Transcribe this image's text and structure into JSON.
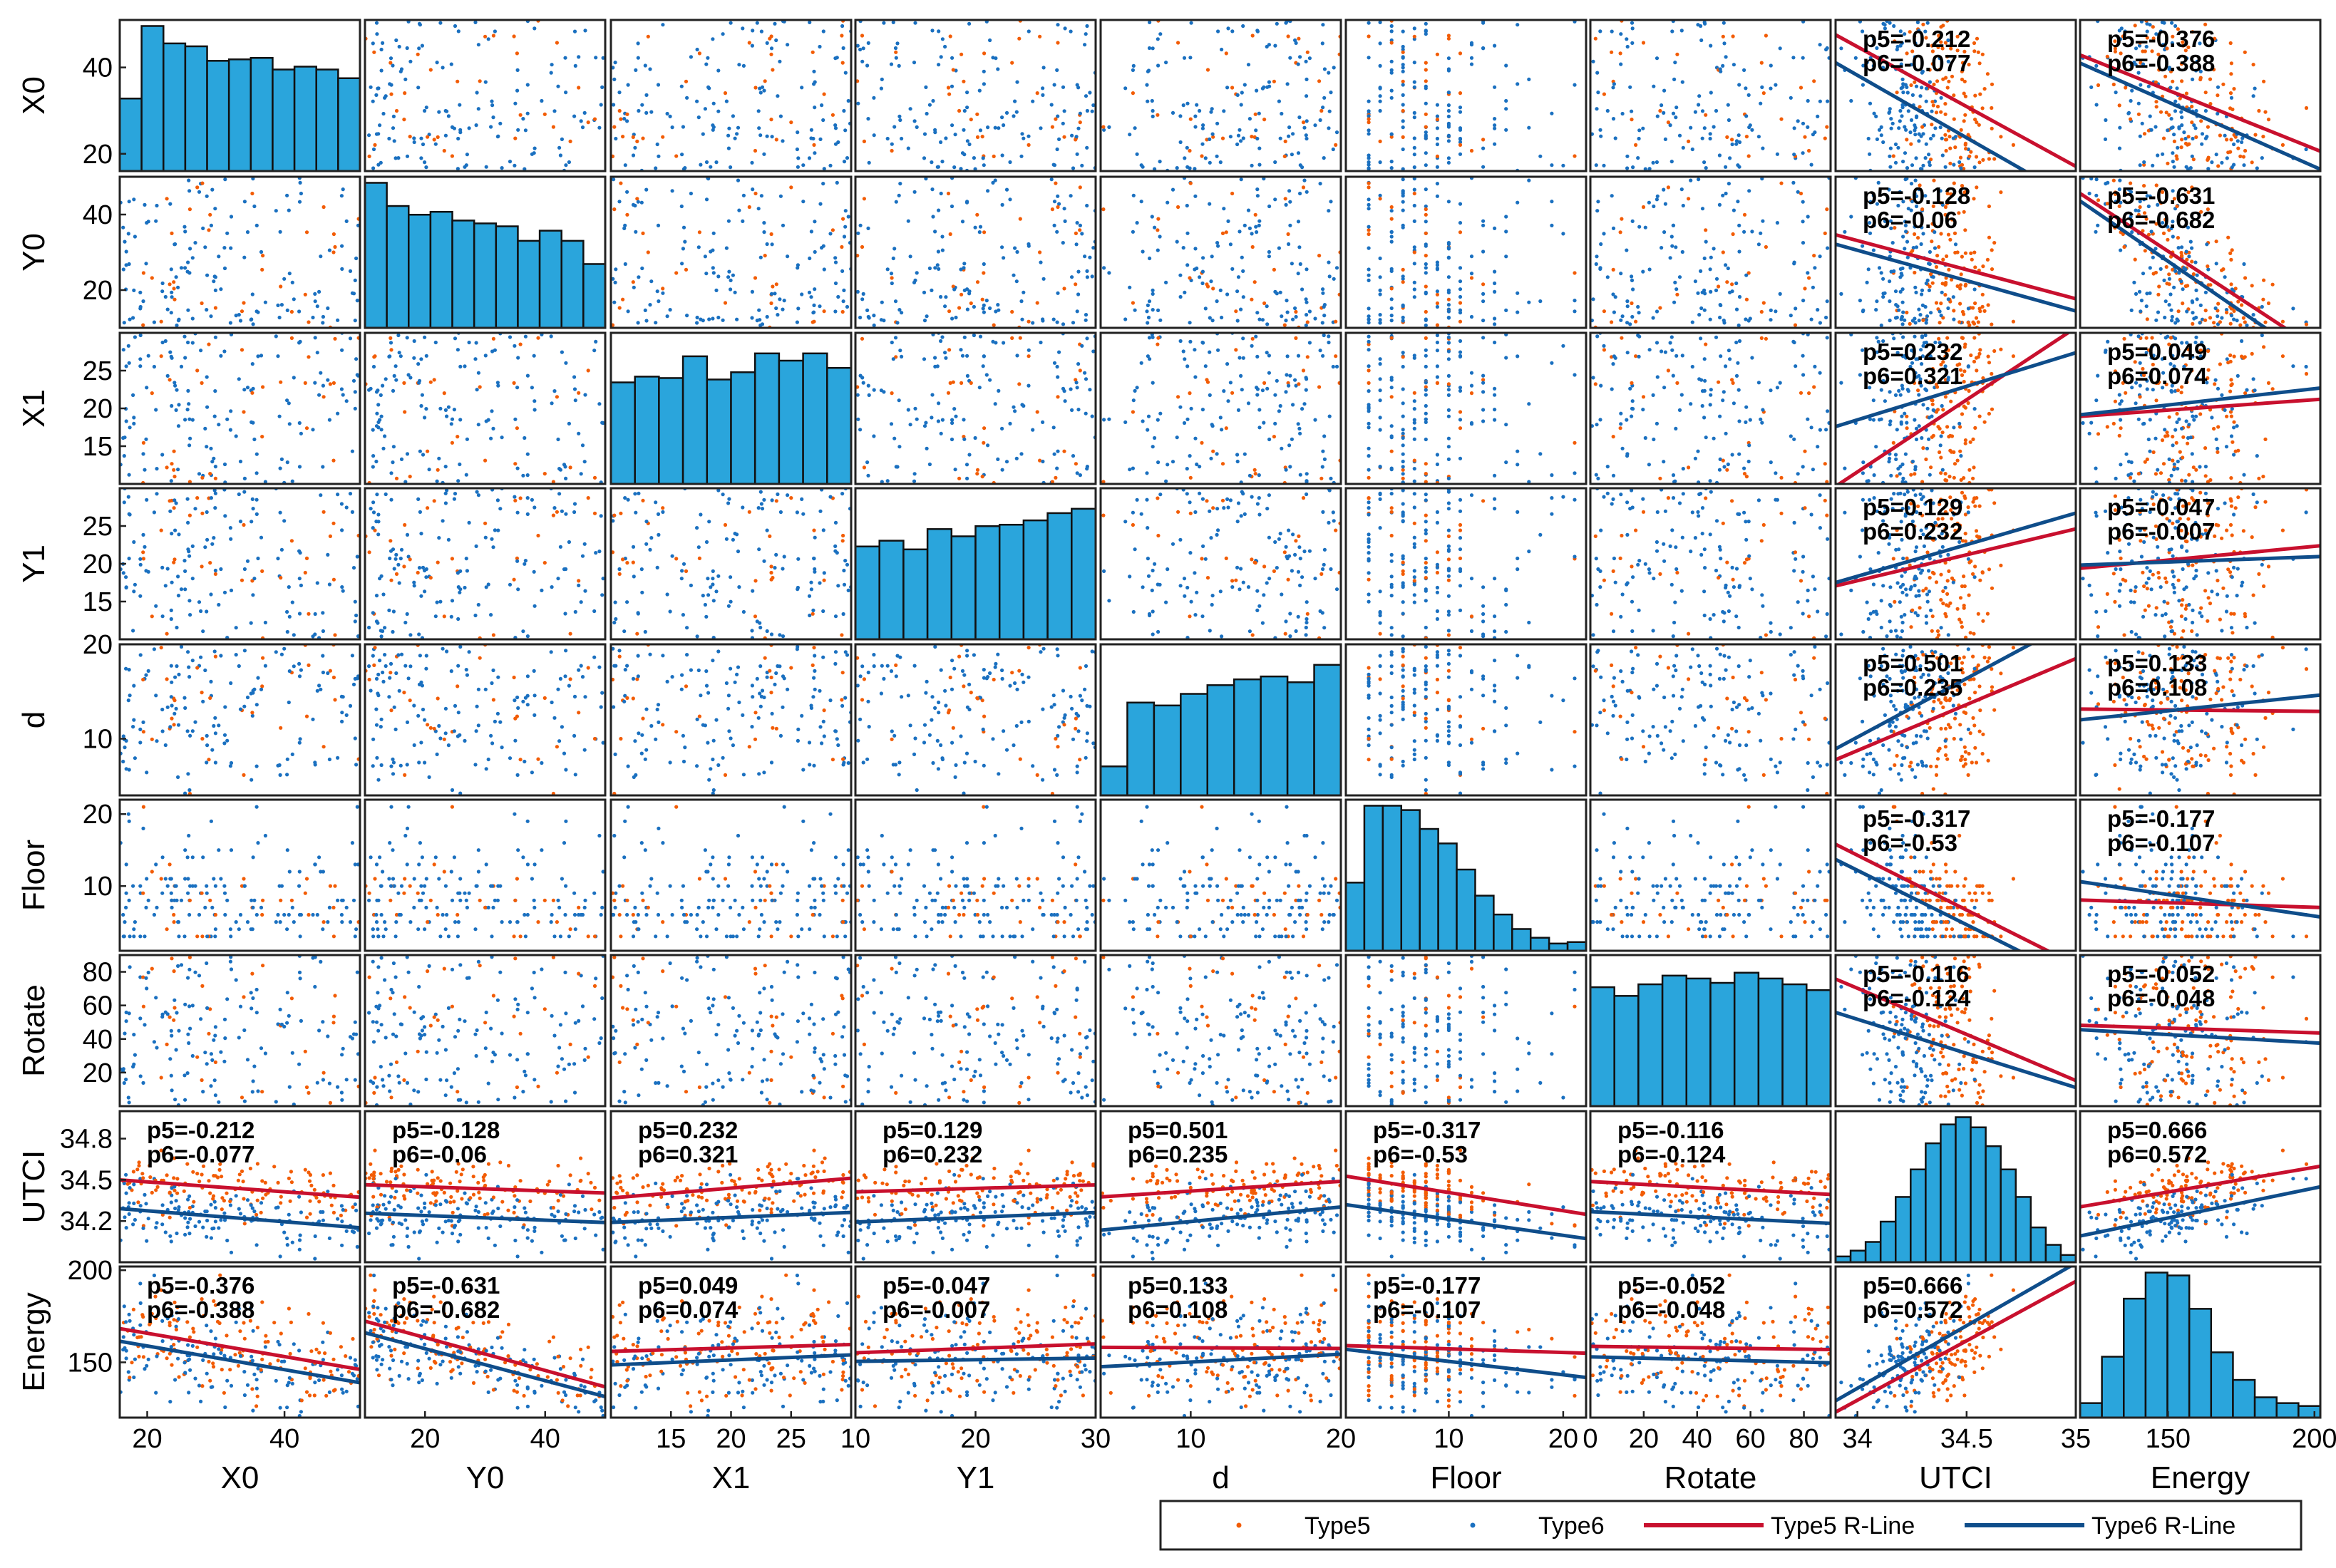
{
  "chart_data": {
    "type": "scatter",
    "title": "",
    "variables": [
      "X0",
      "Y0",
      "X1",
      "Y1",
      "d",
      "Floor",
      "Rotate",
      "UTCI",
      "Energy"
    ],
    "axis_ranges": {
      "X0": [
        16,
        51
      ],
      "Y0": [
        10,
        50
      ],
      "X1": [
        10,
        30
      ],
      "Y1": [
        10,
        30
      ],
      "d": [
        4,
        20
      ],
      "Floor": [
        1,
        22
      ],
      "Rotate": [
        0,
        90
      ],
      "UTCI": [
        33.9,
        35.0
      ],
      "Energy": [
        120,
        202
      ]
    },
    "x_ticks": {
      "X0": [
        "20",
        "40"
      ],
      "Y0": [
        "20",
        "40"
      ],
      "X1": [
        "15",
        "20",
        "25"
      ],
      "Y1": [
        "10",
        "20",
        "30"
      ],
      "d": [
        "10",
        "20"
      ],
      "Floor": [
        "10",
        "20"
      ],
      "Rotate": [
        "0",
        "20",
        "40",
        "60",
        "80"
      ],
      "UTCI": [
        "34",
        "34.5",
        "35"
      ],
      "Energy": [
        "150",
        "200"
      ]
    },
    "x_tick_values": {
      "X0": [
        20,
        40
      ],
      "Y0": [
        20,
        40
      ],
      "X1": [
        15,
        20,
        25
      ],
      "Y1": [
        10,
        20,
        30
      ],
      "d": [
        10,
        20
      ],
      "Floor": [
        10,
        20
      ],
      "Rotate": [
        0,
        20,
        40,
        60,
        80
      ],
      "UTCI": [
        34,
        34.5,
        35
      ],
      "Energy": [
        150,
        200
      ]
    },
    "y_ticks": {
      "X0": [
        "20",
        "40"
      ],
      "Y0": [
        "20",
        "40"
      ],
      "X1": [
        "15",
        "20",
        "25"
      ],
      "Y1": [
        "15",
        "20",
        "25"
      ],
      "d": [
        "10",
        "20"
      ],
      "Floor": [
        "10",
        "20"
      ],
      "Rotate": [
        "20",
        "40",
        "60",
        "80"
      ],
      "UTCI": [
        "34.2",
        "34.5",
        "34.8"
      ],
      "Energy": [
        "150",
        "200"
      ]
    },
    "y_tick_values": {
      "X0": [
        20,
        40
      ],
      "Y0": [
        20,
        40
      ],
      "X1": [
        15,
        20,
        25
      ],
      "Y1": [
        15,
        20,
        25
      ],
      "d": [
        10,
        20
      ],
      "Floor": [
        10,
        20
      ],
      "Rotate": [
        20,
        40,
        60,
        80
      ],
      "UTCI": [
        34.2,
        34.5,
        34.8
      ],
      "Energy": [
        150,
        200
      ]
    },
    "histograms": {
      "X0": [
        0.5,
        1.0,
        0.88,
        0.86,
        0.76,
        0.77,
        0.78,
        0.7,
        0.72,
        0.7,
        0.64
      ],
      "Y0": [
        1.0,
        0.84,
        0.78,
        0.8,
        0.74,
        0.72,
        0.7,
        0.6,
        0.67,
        0.6,
        0.44
      ],
      "X1": [
        0.7,
        0.74,
        0.73,
        0.88,
        0.72,
        0.77,
        0.9,
        0.85,
        0.9,
        0.8
      ],
      "Y1": [
        0.64,
        0.68,
        0.62,
        0.76,
        0.71,
        0.78,
        0.79,
        0.82,
        0.87,
        0.9
      ],
      "d": [
        0.2,
        0.64,
        0.62,
        0.7,
        0.76,
        0.8,
        0.82,
        0.78,
        0.9
      ],
      "Floor": [
        0.47,
        1.0,
        1.0,
        0.97,
        0.84,
        0.74,
        0.56,
        0.38,
        0.25,
        0.15,
        0.09,
        0.05,
        0.06
      ],
      "Rotate": [
        0.82,
        0.76,
        0.84,
        0.9,
        0.88,
        0.85,
        0.92,
        0.88,
        0.84,
        0.8
      ],
      "UTCI": [
        0.04,
        0.08,
        0.14,
        0.28,
        0.45,
        0.64,
        0.82,
        0.95,
        1.0,
        0.93,
        0.8,
        0.64,
        0.45,
        0.24,
        0.12,
        0.05
      ],
      "Energy": [
        0.1,
        0.42,
        0.82,
        1.0,
        0.98,
        0.75,
        0.45,
        0.26,
        0.14,
        0.1,
        0.08
      ]
    },
    "correlations": {
      "X0": {
        "UTCI": {
          "p5": "-0.212",
          "p6": "-0.077"
        },
        "Energy": {
          "p5": "-0.376",
          "p6": "-0.388"
        }
      },
      "Y0": {
        "UTCI": {
          "p5": "-0.128",
          "p6": "-0.06"
        },
        "Energy": {
          "p5": "-0.631",
          "p6": "-0.682"
        }
      },
      "X1": {
        "UTCI": {
          "p5": "0.232",
          "p6": "0.321"
        },
        "Energy": {
          "p5": "0.049",
          "p6": "0.074"
        }
      },
      "Y1": {
        "UTCI": {
          "p5": "0.129",
          "p6": "0.232"
        },
        "Energy": {
          "p5": "-0.047",
          "p6": "-0.007"
        }
      },
      "d": {
        "UTCI": {
          "p5": "0.501",
          "p6": "0.235"
        },
        "Energy": {
          "p5": "0.133",
          "p6": "0.108"
        }
      },
      "Floor": {
        "UTCI": {
          "p5": "-0.317",
          "p6": "-0.53"
        },
        "Energy": {
          "p5": "-0.177",
          "p6": "-0.107"
        }
      },
      "Rotate": {
        "UTCI": {
          "p5": "-0.116",
          "p6": "-0.124"
        },
        "Energy": {
          "p5": "-0.052",
          "p6": "-0.048"
        }
      },
      "UTCI": {
        "Energy": {
          "p5": "0.666",
          "p6": "0.572"
        }
      }
    },
    "legend": {
      "position": "bottom-right",
      "entries": [
        "Type5",
        "Type6",
        "Type5 R-Line",
        "Type6 R-Line"
      ]
    },
    "point_count_estimate": 260
  },
  "colors": {
    "type5": "#f25c05",
    "type6": "#1a70c0",
    "type5_line": "#c8102e",
    "type6_line": "#0f4d8a",
    "hist_fill": "#2aa5dc",
    "hist_edge": "#111111",
    "axis": "#222222",
    "text": "#000000"
  }
}
